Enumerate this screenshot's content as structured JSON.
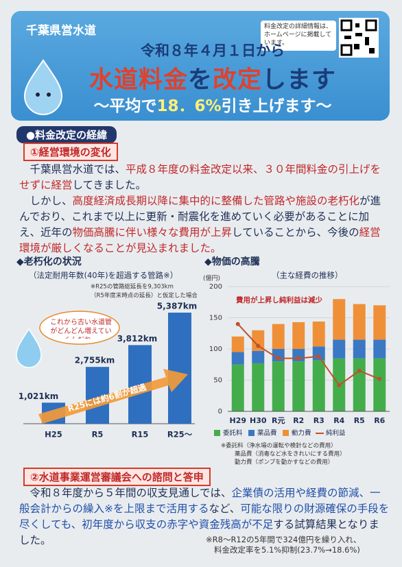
{
  "header": {
    "org": "千葉県営水道",
    "date": "令和８年４月１日から",
    "title": [
      {
        "text": "水道料金",
        "color": "#e0412b"
      },
      {
        "text": "を",
        "color": "#1b3c78"
      },
      {
        "text": "改定",
        "color": "#e0412b"
      },
      {
        "text": "します",
        "color": "#1b3c78"
      }
    ],
    "subtitle": [
      {
        "text": "〜平均で",
        "color": "#ffffff"
      },
      {
        "text": "18．6%",
        "color": "#fff07a"
      },
      {
        "text": "引き上げます〜",
        "color": "#ffffff"
      }
    ],
    "notice": "料金改定の詳細情報は、ホームページに掲載しています。"
  },
  "section1": {
    "heading": "●料金改定の経緯",
    "subheading": "①経営環境の変化",
    "paragraphs": [
      [
        {
          "text": "千葉県営水道では、"
        },
        {
          "text": "平成８年度の料金改定以来、３０年間料金の引上げをせずに経営",
          "color": "#c0282a"
        },
        {
          "text": "してきました。"
        }
      ],
      [
        {
          "text": "しかし、"
        },
        {
          "text": "高度経済成長期以降に集中的に整備した管路や施設の老朽化",
          "color": "#c0282a"
        },
        {
          "text": "が進んでおり、これまで以上に更新・耐震化を進めていく必要があることに加え、近年の"
        },
        {
          "text": "物価高騰に伴い様々な費用が上昇",
          "color": "#c0282a"
        },
        {
          "text": "していることから、今後の"
        },
        {
          "text": "経営環境が厳しくなることが見込まれました。",
          "color": "#c0282a"
        }
      ]
    ]
  },
  "chart_data": [
    {
      "type": "bar",
      "title": "◆老朽化の状況",
      "subtitle": "（法定耐用年数(40年)を超過する管路※）",
      "notes": [
        "※R25の管路総延長を9,303km",
        "（R5年度末時点の延長）と仮定した場合"
      ],
      "categories": [
        "H25",
        "R5",
        "R15",
        "R25〜"
      ],
      "values": [
        1021,
        2755,
        3812,
        5387
      ],
      "value_labels": [
        "1,021km",
        "2,755km",
        "3,812km",
        "5,387km"
      ],
      "color": "#2f6fc0",
      "annotations": [
        "これから古い水道管がどんどん増えていくんだね…",
        "R25には約6割が超過"
      ]
    },
    {
      "type": "stacked_bar",
      "title": "◆物価の高騰",
      "subtitle": "（主な経費の推移）",
      "y_label": "(億円)",
      "categories": [
        "H29",
        "H30",
        "R元",
        "R2",
        "R3",
        "R4",
        "R5",
        "R6"
      ],
      "series": [
        {
          "name": "委託料",
          "color": "#43ad4c",
          "values": [
            75,
            77,
            80,
            80,
            82,
            85,
            85,
            85
          ]
        },
        {
          "name": "薬品費",
          "color": "#3a78c4",
          "values": [
            20,
            20,
            20,
            20,
            22,
            30,
            30,
            30
          ]
        },
        {
          "name": "動力費",
          "color": "#ef9038",
          "values": [
            25,
            33,
            40,
            43,
            40,
            65,
            57,
            55
          ]
        },
        {
          "name": "純利益",
          "type": "line",
          "color": "#c0502b",
          "values": [
            140,
            105,
            85,
            85,
            88,
            42,
            65,
            52
          ]
        }
      ],
      "ylim": [
        0,
        200
      ],
      "yticks": [
        0,
        50,
        100,
        150,
        200
      ],
      "grid": true,
      "annotation": "費用が上昇し純利益は減少",
      "notes": [
        "※委託料（浄水場の運転や検針などの費用）",
        "薬品費（消毒など水をきれいにする費用）",
        "動力費（ポンプを動かすなどの費用）"
      ]
    }
  ],
  "section2": {
    "heading": "②水道事業運営審議会への諮問と答申",
    "paragraphs": [
      [
        {
          "text": "令和８年度から５年間の収支見通しでは、"
        },
        {
          "text": "企業債の活用や経費の節減、一般会計からの繰入※を上限まで活用する",
          "color": "#1f4fa8"
        },
        {
          "text": "など、"
        },
        {
          "text": "可能な限りの財源確保の手段を尽くしても、初年度から収支の赤字や資金残高が不足",
          "color": "#1f4fa8"
        },
        {
          "text": "する試算結果となりました。"
        }
      ]
    ],
    "footnote": [
      "※R8〜R12の5年間で324億円を繰り入れ、",
      "料金改定率を5.1%抑制(23.7%→18.6%)"
    ]
  }
}
